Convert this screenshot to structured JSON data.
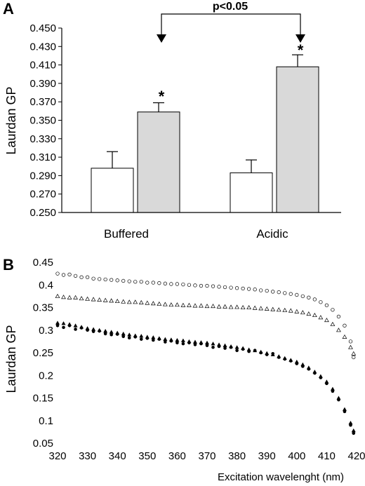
{
  "chart_data": [
    {
      "panel": "A",
      "type": "bar",
      "ylabel": "Laurdan  GP",
      "ylim": [
        0.25,
        0.45
      ],
      "yticks": [
        "0.250",
        "0.270",
        "0.290",
        "0.310",
        "0.330",
        "0.350",
        "0.370",
        "0.390",
        "0.410",
        "0.430",
        "0.450"
      ],
      "categories": [
        "Buffered",
        "Acidic"
      ],
      "series": [
        {
          "values": [
            0.298,
            0.293
          ],
          "errors": [
            0.018,
            0.014
          ],
          "color": "#ffffff"
        },
        {
          "values": [
            0.359,
            0.408
          ],
          "errors": [
            0.01,
            0.013
          ],
          "color": "#d9d9d9"
        }
      ],
      "annotations": {
        "significance": "p<0.05",
        "star": "*"
      }
    },
    {
      "panel": "B",
      "type": "scatter",
      "xlabel": "Excitation wavelenght (nm)",
      "ylabel": "Laurdan  GP",
      "xlim": [
        320,
        420
      ],
      "ylim": [
        0.05,
        0.45
      ],
      "xticks": [
        "320",
        "330",
        "340",
        "350",
        "360",
        "370",
        "380",
        "390",
        "400",
        "410",
        "420"
      ],
      "yticks": [
        "0.05",
        "0.1",
        "0.15",
        "0.2",
        "0.25",
        "0.3",
        "0.35",
        "0.4",
        "0.45"
      ],
      "series": [
        {
          "marker": "open-circle",
          "points": [
            [
              320,
              0.425
            ],
            [
              322,
              0.422
            ],
            [
              324,
              0.423
            ],
            [
              326,
              0.42
            ],
            [
              328,
              0.417
            ],
            [
              330,
              0.417
            ],
            [
              332,
              0.414
            ],
            [
              334,
              0.413
            ],
            [
              336,
              0.412
            ],
            [
              338,
              0.411
            ],
            [
              340,
              0.41
            ],
            [
              342,
              0.409
            ],
            [
              344,
              0.408
            ],
            [
              346,
              0.407
            ],
            [
              348,
              0.407
            ],
            [
              350,
              0.405
            ],
            [
              352,
              0.405
            ],
            [
              354,
              0.404
            ],
            [
              356,
              0.403
            ],
            [
              358,
              0.402
            ],
            [
              360,
              0.402
            ],
            [
              362,
              0.401
            ],
            [
              364,
              0.4
            ],
            [
              366,
              0.399
            ],
            [
              368,
              0.398
            ],
            [
              370,
              0.398
            ],
            [
              372,
              0.397
            ],
            [
              374,
              0.396
            ],
            [
              376,
              0.395
            ],
            [
              378,
              0.394
            ],
            [
              380,
              0.393
            ],
            [
              382,
              0.392
            ],
            [
              384,
              0.391
            ],
            [
              386,
              0.39
            ],
            [
              388,
              0.388
            ],
            [
              390,
              0.387
            ],
            [
              392,
              0.385
            ],
            [
              394,
              0.384
            ],
            [
              396,
              0.382
            ],
            [
              398,
              0.38
            ],
            [
              400,
              0.378
            ],
            [
              402,
              0.375
            ],
            [
              404,
              0.372
            ],
            [
              406,
              0.368
            ],
            [
              408,
              0.362
            ],
            [
              410,
              0.355
            ],
            [
              412,
              0.345
            ],
            [
              414,
              0.33
            ],
            [
              416,
              0.31
            ],
            [
              418,
              0.275
            ],
            [
              419,
              0.24
            ]
          ]
        },
        {
          "marker": "open-triangle",
          "points": [
            [
              320,
              0.375
            ],
            [
              322,
              0.373
            ],
            [
              324,
              0.372
            ],
            [
              326,
              0.372
            ],
            [
              328,
              0.37
            ],
            [
              330,
              0.369
            ],
            [
              332,
              0.368
            ],
            [
              334,
              0.367
            ],
            [
              336,
              0.366
            ],
            [
              338,
              0.365
            ],
            [
              340,
              0.364
            ],
            [
              342,
              0.363
            ],
            [
              344,
              0.362
            ],
            [
              346,
              0.362
            ],
            [
              348,
              0.361
            ],
            [
              350,
              0.36
            ],
            [
              352,
              0.359
            ],
            [
              354,
              0.358
            ],
            [
              356,
              0.357
            ],
            [
              358,
              0.356
            ],
            [
              360,
              0.356
            ],
            [
              362,
              0.355
            ],
            [
              364,
              0.355
            ],
            [
              366,
              0.354
            ],
            [
              368,
              0.354
            ],
            [
              370,
              0.353
            ],
            [
              372,
              0.353
            ],
            [
              374,
              0.352
            ],
            [
              376,
              0.352
            ],
            [
              378,
              0.351
            ],
            [
              380,
              0.351
            ],
            [
              382,
              0.35
            ],
            [
              384,
              0.35
            ],
            [
              386,
              0.349
            ],
            [
              388,
              0.348
            ],
            [
              390,
              0.347
            ],
            [
              392,
              0.346
            ],
            [
              394,
              0.345
            ],
            [
              396,
              0.344
            ],
            [
              398,
              0.343
            ],
            [
              400,
              0.341
            ],
            [
              402,
              0.339
            ],
            [
              404,
              0.336
            ],
            [
              406,
              0.333
            ],
            [
              408,
              0.328
            ],
            [
              410,
              0.322
            ],
            [
              412,
              0.313
            ],
            [
              414,
              0.3
            ],
            [
              416,
              0.285
            ],
            [
              418,
              0.262
            ],
            [
              419,
              0.248
            ]
          ]
        },
        {
          "marker": "filled-triangle",
          "points": [
            [
              320,
              0.316
            ],
            [
              322,
              0.315
            ],
            [
              324,
              0.313
            ],
            [
              326,
              0.31
            ],
            [
              328,
              0.307
            ],
            [
              330,
              0.304
            ],
            [
              332,
              0.302
            ],
            [
              334,
              0.3
            ],
            [
              336,
              0.298
            ],
            [
              338,
              0.296
            ],
            [
              340,
              0.294
            ],
            [
              342,
              0.292
            ],
            [
              344,
              0.29
            ],
            [
              346,
              0.288
            ],
            [
              348,
              0.287
            ],
            [
              350,
              0.285
            ],
            [
              352,
              0.284
            ],
            [
              354,
              0.282
            ],
            [
              356,
              0.28
            ],
            [
              358,
              0.279
            ],
            [
              360,
              0.278
            ],
            [
              362,
              0.277
            ],
            [
              364,
              0.275
            ],
            [
              366,
              0.274
            ],
            [
              368,
              0.273
            ],
            [
              370,
              0.272
            ],
            [
              372,
              0.27
            ],
            [
              374,
              0.268
            ],
            [
              376,
              0.266
            ],
            [
              378,
              0.264
            ],
            [
              380,
              0.262
            ],
            [
              382,
              0.26
            ],
            [
              384,
              0.257
            ],
            [
              386,
              0.255
            ],
            [
              388,
              0.252
            ],
            [
              390,
              0.249
            ],
            [
              392,
              0.246
            ],
            [
              394,
              0.242
            ],
            [
              396,
              0.238
            ],
            [
              398,
              0.234
            ],
            [
              400,
              0.23
            ],
            [
              402,
              0.224
            ],
            [
              404,
              0.217
            ],
            [
              406,
              0.208
            ],
            [
              408,
              0.198
            ],
            [
              410,
              0.186
            ],
            [
              412,
              0.17
            ],
            [
              414,
              0.15
            ],
            [
              416,
              0.125
            ],
            [
              418,
              0.095
            ],
            [
              419,
              0.078
            ]
          ]
        },
        {
          "marker": "filled-circle",
          "points": [
            [
              320,
              0.31
            ],
            [
              322,
              0.306
            ],
            [
              324,
              0.31
            ],
            [
              326,
              0.302
            ],
            [
              328,
              0.305
            ],
            [
              330,
              0.3
            ],
            [
              332,
              0.297
            ],
            [
              334,
              0.298
            ],
            [
              336,
              0.292
            ],
            [
              338,
              0.29
            ],
            [
              340,
              0.291
            ],
            [
              342,
              0.286
            ],
            [
              344,
              0.283
            ],
            [
              346,
              0.285
            ],
            [
              348,
              0.28
            ],
            [
              350,
              0.282
            ],
            [
              352,
              0.278
            ],
            [
              354,
              0.28
            ],
            [
              356,
              0.274
            ],
            [
              358,
              0.276
            ],
            [
              360,
              0.272
            ],
            [
              362,
              0.27
            ],
            [
              364,
              0.272
            ],
            [
              366,
              0.268
            ],
            [
              368,
              0.27
            ],
            [
              370,
              0.266
            ],
            [
              372,
              0.262
            ],
            [
              374,
              0.264
            ],
            [
              376,
              0.26
            ],
            [
              378,
              0.262
            ],
            [
              380,
              0.255
            ],
            [
              382,
              0.258
            ],
            [
              384,
              0.253
            ],
            [
              386,
              0.255
            ],
            [
              388,
              0.25
            ],
            [
              390,
              0.246
            ],
            [
              392,
              0.248
            ],
            [
              394,
              0.24
            ],
            [
              396,
              0.236
            ],
            [
              398,
              0.232
            ],
            [
              400,
              0.226
            ],
            [
              402,
              0.22
            ],
            [
              404,
              0.214
            ],
            [
              406,
              0.205
            ],
            [
              408,
              0.195
            ],
            [
              410,
              0.182
            ],
            [
              412,
              0.165
            ],
            [
              414,
              0.146
            ],
            [
              416,
              0.12
            ],
            [
              418,
              0.09
            ],
            [
              419,
              0.072
            ]
          ]
        }
      ]
    }
  ]
}
